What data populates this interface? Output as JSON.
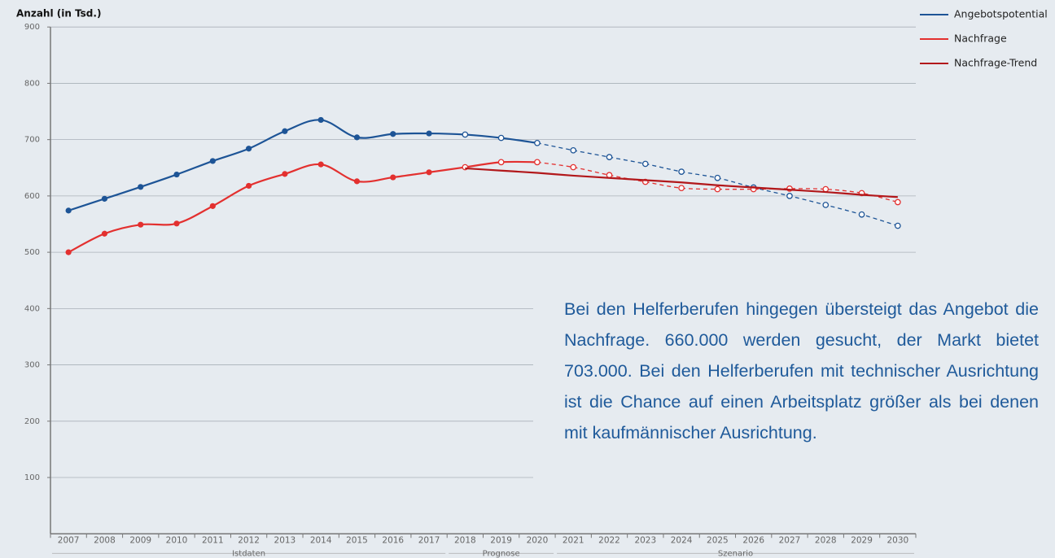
{
  "chart_data": {
    "type": "line",
    "y_axis_label": "Anzahl (in Tsd.)",
    "categories": [
      "2007",
      "2008",
      "2009",
      "2010",
      "2011",
      "2012",
      "2013",
      "2014",
      "2015",
      "2016",
      "2017",
      "2018",
      "2019",
      "2020",
      "2021",
      "2022",
      "2023",
      "2024",
      "2025",
      "2026",
      "2027",
      "2028",
      "2029",
      "2030"
    ],
    "x_groups": [
      {
        "label": "Istdaten",
        "from": "2007",
        "to": "2017"
      },
      {
        "label": "Prognose",
        "from": "2018",
        "to": "2020"
      },
      {
        "label": "Szenario",
        "from": "2021",
        "to": "2030"
      }
    ],
    "series": [
      {
        "name": "Angebotspotential",
        "color": "#1d5496",
        "markers": true,
        "values": [
          574,
          595,
          616,
          638,
          662,
          684,
          715,
          735,
          704,
          710,
          711,
          709,
          703,
          694,
          681,
          669,
          657,
          643,
          632,
          615,
          600,
          584,
          567,
          547
        ]
      },
      {
        "name": "Nachfrage",
        "color": "#e3302f",
        "markers": true,
        "values": [
          500,
          533,
          549,
          551,
          582,
          618,
          639,
          656,
          626,
          633,
          642,
          651,
          660,
          660,
          651,
          637,
          625,
          614,
          612,
          612,
          613,
          612,
          605,
          589
        ]
      },
      {
        "name": "Nachfrage-Trend",
        "color": "#b2181b",
        "markers": false,
        "values": [
          null,
          null,
          null,
          null,
          null,
          null,
          null,
          null,
          null,
          null,
          null,
          649,
          645,
          641,
          636,
          632,
          628,
          624,
          619,
          615,
          611,
          607,
          602,
          598
        ]
      }
    ],
    "ylim": [
      0,
      900
    ],
    "yticks": [
      100,
      200,
      300,
      400,
      500,
      600,
      700,
      800,
      900
    ],
    "grid": true,
    "legend": "top-right",
    "annotation": "Bei den Helferberufen hingegen übersteigt das Angebot die Nachfrage. 660.000 werden gesucht, der Markt bietet 703.000. Bei den Helferberufen mit technischer Ausrichtung ist die Chance auf einen Arbeitsplatz größer als bei denen mit kaufmännischer Ausrichtung."
  }
}
